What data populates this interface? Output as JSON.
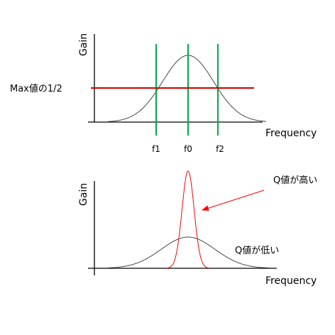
{
  "top_diagram": {
    "y_axis_label": "Gain",
    "x_axis_label": "Frequency",
    "half_max_label": "Max値の1/2",
    "markers": [
      "f1",
      "f0",
      "f2"
    ],
    "colors": {
      "curve": "#333333",
      "markers": "#00aa44",
      "half_max_line": "#cc0000",
      "axis": "#000000"
    }
  },
  "bottom_diagram": {
    "y_axis_label": "Gain",
    "x_axis_label": "Frequency",
    "high_q_label": "Q値が高い",
    "low_q_label": "Q値が低い",
    "colors": {
      "high_q_curve": "#ff0000",
      "low_q_curve": "#333333",
      "arrow": "#ff0000",
      "axis": "#000000"
    }
  }
}
